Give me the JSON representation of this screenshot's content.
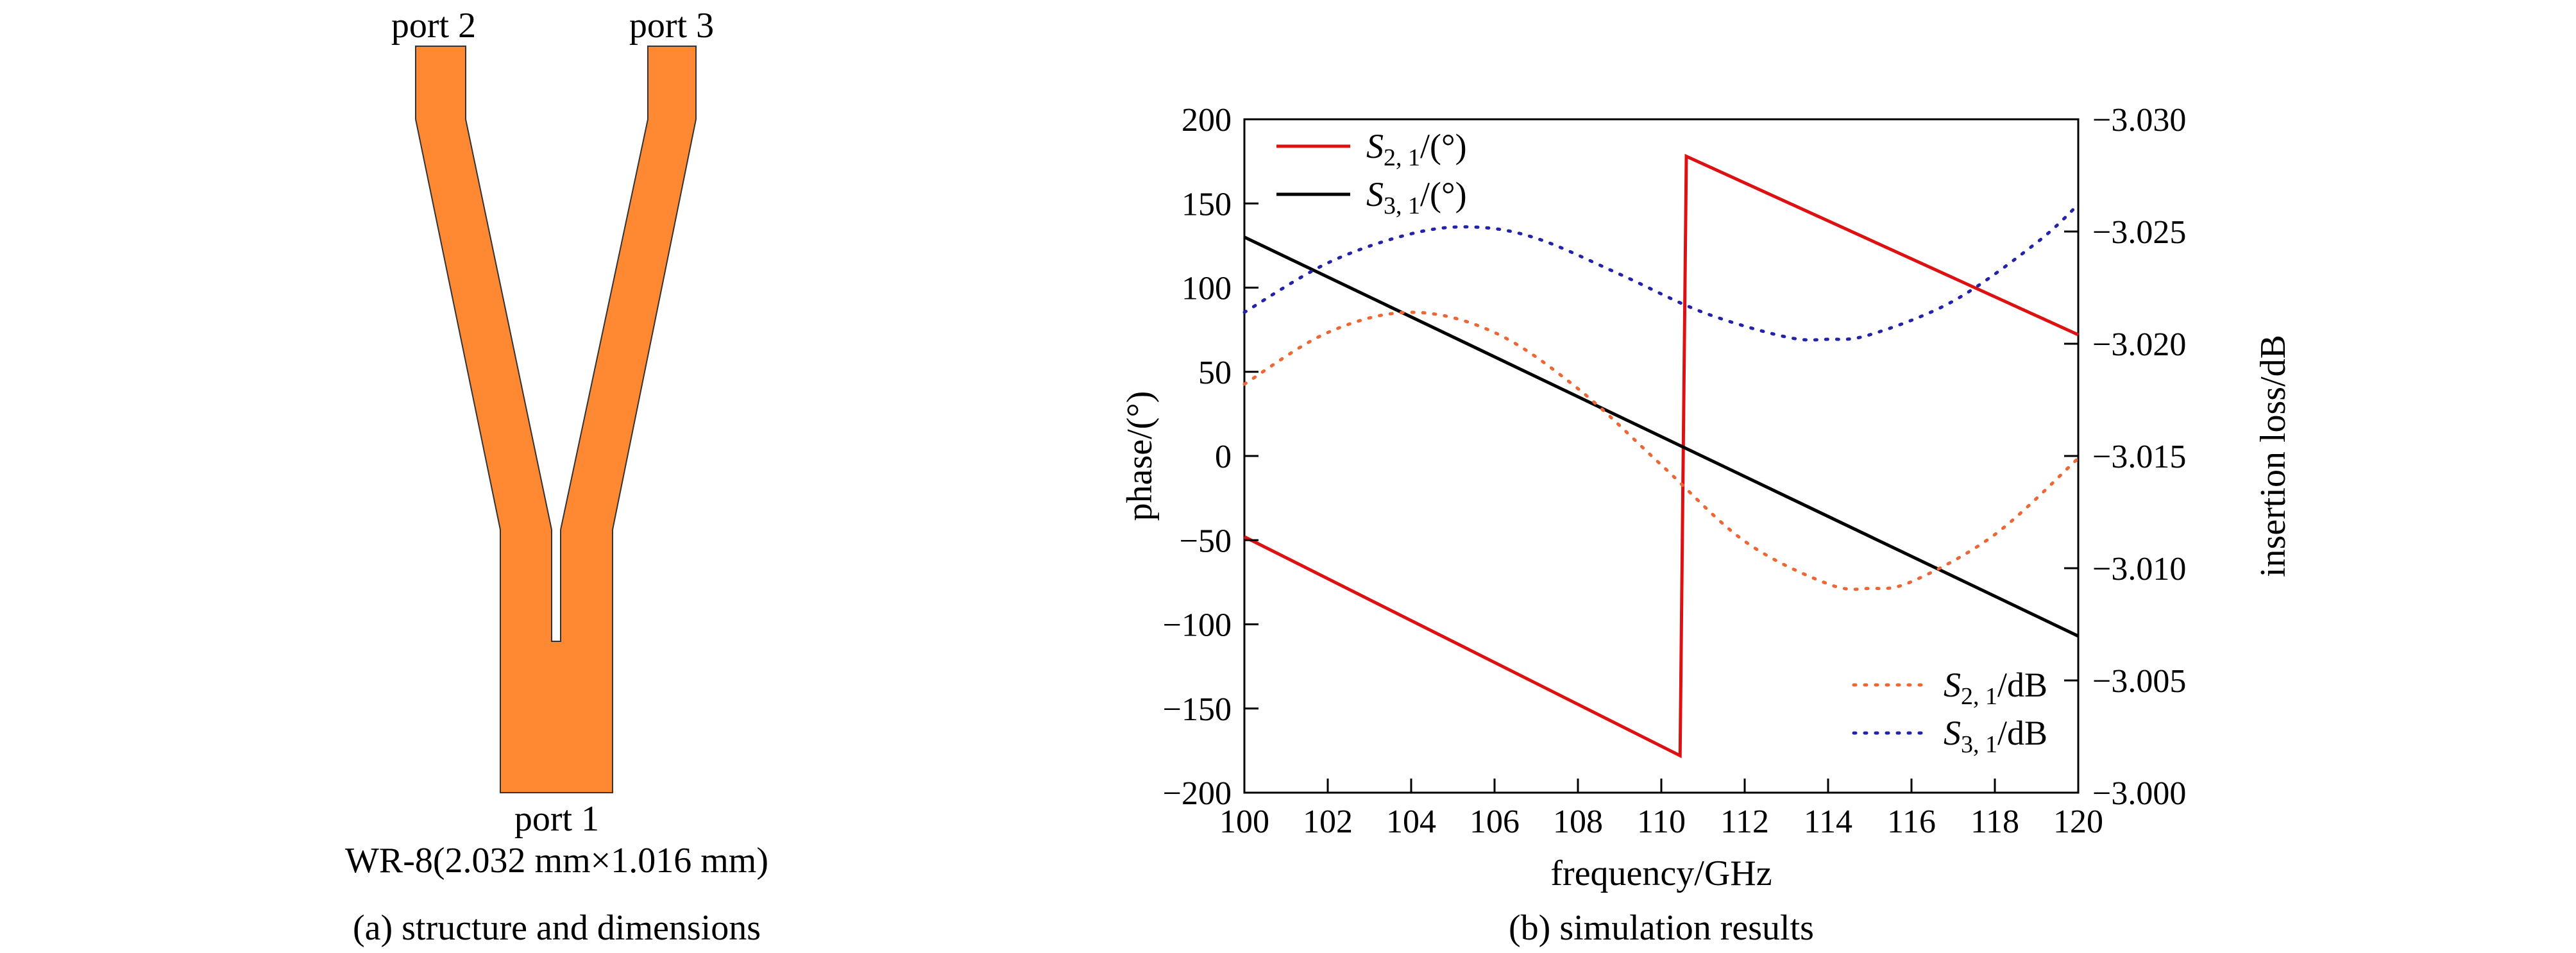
{
  "panel_a": {
    "caption": "(a) structure and dimensions",
    "port_labels": [
      "port 2",
      "port 3",
      "port 1"
    ],
    "waveguide_label": "WR-8(2.032 mm×1.016 mm)",
    "structure_color": "#FF8833"
  },
  "panel_b": {
    "caption": "(b) simulation results"
  },
  "chart_data": {
    "type": "line",
    "xlabel": "frequency/GHz",
    "ylabel": "phase/(°)",
    "y2label": "insertion loss/dB",
    "xlim": [
      100,
      120
    ],
    "ylim": [
      -200,
      200
    ],
    "y2lim": [
      -3.03,
      -3.0
    ],
    "y2_reversed": true,
    "x_ticks": [
      "100",
      "102",
      "104",
      "106",
      "108",
      "110",
      "112",
      "114",
      "116",
      "118",
      "120"
    ],
    "y_ticks": [
      "200",
      "150",
      "100",
      "50",
      "0",
      "-50",
      "-100",
      "-150",
      "-200"
    ],
    "y2_ticks": [
      "-3.030",
      "-3.025",
      "-3.020",
      "-3.015",
      "-3.010",
      "-3.005",
      "-3.000"
    ],
    "grid": false,
    "legends": [
      {
        "placement": "top-left",
        "entries": [
          {
            "sym": "S",
            "sub": "2, 1",
            "unit": "/(°)",
            "color": "#DD1111",
            "dash": "solid"
          },
          {
            "sym": "S",
            "sub": "3, 1",
            "unit": "/(°)",
            "color": "#000000",
            "dash": "solid"
          }
        ]
      },
      {
        "placement": "bottom-right",
        "entries": [
          {
            "sym": "S",
            "sub": "2, 1",
            "unit": "/dB",
            "color": "#EE6633",
            "dash": "dotted"
          },
          {
            "sym": "S",
            "sub": "3, 1",
            "unit": "/dB",
            "color": "#2222AA",
            "dash": "dotted"
          }
        ]
      }
    ],
    "series": [
      {
        "key": "S21_phase",
        "axis": "left",
        "color": "#DD1111",
        "dash": "solid",
        "x": [
          100,
          110.45,
          110.6,
          120
        ],
        "y": [
          -48,
          -178,
          178,
          72
        ]
      },
      {
        "key": "S31_phase",
        "axis": "left",
        "color": "#000000",
        "dash": "solid",
        "x": [
          100,
          120
        ],
        "y": [
          130,
          -107
        ]
      },
      {
        "key": "S21_dB",
        "axis": "right",
        "color": "#EE6633",
        "dash": "dotted",
        "x": [
          100,
          102,
          104,
          106,
          108,
          110,
          112,
          114,
          115,
          116,
          118,
          120
        ],
        "y": [
          -3.0182,
          -3.0205,
          -3.0214,
          -3.0205,
          -3.018,
          -3.0146,
          -3.0112,
          -3.0093,
          -3.0091,
          -3.0094,
          -3.0115,
          -3.0149
        ]
      },
      {
        "key": "S31_dB",
        "axis": "right",
        "color": "#2222AA",
        "dash": "dotted",
        "x": [
          100,
          102,
          104,
          105.5,
          107,
          109,
          111,
          113,
          114,
          115,
          117,
          119,
          120
        ],
        "y": [
          -3.0214,
          -3.0236,
          -3.0249,
          -3.0252,
          -3.0247,
          -3.0231,
          -3.0214,
          -3.0203,
          -3.0202,
          -3.0204,
          -3.0219,
          -3.0245,
          -3.0262
        ]
      }
    ]
  }
}
